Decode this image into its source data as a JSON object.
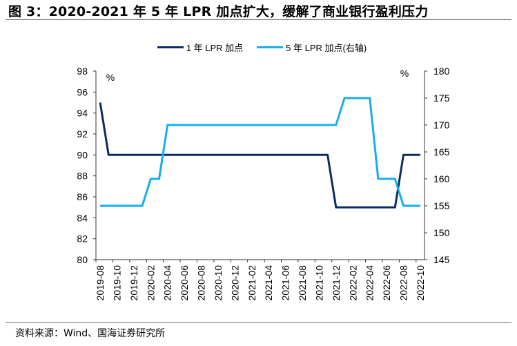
{
  "header": {
    "title": "图 3：2020-2021 年 5 年 LPR 加点扩大，缓解了商业银行盈利压力"
  },
  "footer": {
    "source": "资料来源：Wind、国海证券研究所"
  },
  "chart_data": {
    "type": "line",
    "title": "图 3：2020-2021 年 5 年 LPR 加点扩大，缓解了商业银行盈利压力",
    "legend_position": "top-center",
    "x": [
      "2019-08",
      "2019-09",
      "2019-10",
      "2019-11",
      "2019-12",
      "2020-01",
      "2020-02",
      "2020-03",
      "2020-04",
      "2020-05",
      "2020-06",
      "2020-07",
      "2020-08",
      "2020-09",
      "2020-10",
      "2020-11",
      "2020-12",
      "2021-01",
      "2021-02",
      "2021-03",
      "2021-04",
      "2021-05",
      "2021-06",
      "2021-07",
      "2021-08",
      "2021-09",
      "2021-10",
      "2021-11",
      "2021-12",
      "2022-01",
      "2022-02",
      "2022-03",
      "2022-04",
      "2022-05",
      "2022-06",
      "2022-07",
      "2022-08",
      "2022-09",
      "2022-10"
    ],
    "x_tick_labels": [
      "2019-08",
      "2019-10",
      "2019-12",
      "2020-02",
      "2020-04",
      "2020-06",
      "2020-08",
      "2020-10",
      "2020-12",
      "2021-02",
      "2021-04",
      "2021-06",
      "2021-08",
      "2021-10",
      "2021-12",
      "2022-02",
      "2022-04",
      "2022-06",
      "2022-08",
      "2022-10"
    ],
    "left_axis": {
      "unit_label": "%",
      "ylim": [
        80,
        98
      ],
      "ticks": [
        "80",
        "82",
        "84",
        "86",
        "88",
        "90",
        "92",
        "94",
        "96",
        "98"
      ]
    },
    "right_axis": {
      "unit_label": "%",
      "ylim": [
        145,
        180
      ],
      "ticks": [
        "145",
        "150",
        "155",
        "160",
        "165",
        "170",
        "175",
        "180"
      ]
    },
    "grid": false,
    "series": [
      {
        "name": "1 年 LPR 加点",
        "axis": "left",
        "color": "#0d2a61",
        "values": [
          95,
          90,
          90,
          90,
          90,
          90,
          90,
          90,
          90,
          90,
          90,
          90,
          90,
          90,
          90,
          90,
          90,
          90,
          90,
          90,
          90,
          90,
          90,
          90,
          90,
          90,
          90,
          90,
          85,
          85,
          85,
          85,
          85,
          85,
          85,
          85,
          90,
          90,
          90
        ]
      },
      {
        "name": "5 年 LPR 加点(右轴)",
        "axis": "right",
        "color": "#16aee8",
        "values": [
          155,
          155,
          155,
          155,
          155,
          155,
          160,
          160,
          170,
          170,
          170,
          170,
          170,
          170,
          170,
          170,
          170,
          170,
          170,
          170,
          170,
          170,
          170,
          170,
          170,
          170,
          170,
          170,
          170,
          175,
          175,
          175,
          175,
          160,
          160,
          160,
          155,
          155,
          155
        ]
      }
    ]
  }
}
